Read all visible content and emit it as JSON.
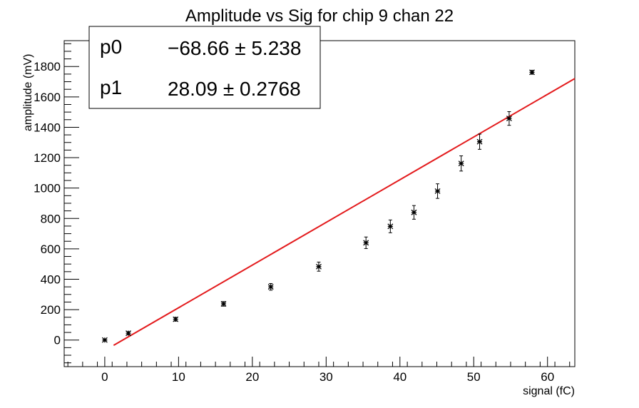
{
  "chart_data": {
    "type": "scatter",
    "title": "Amplitude vs Sig for chip 9 chan 22",
    "xlabel": "signal (fC)",
    "ylabel": "amplitude (mV)",
    "xlim": [
      -5.5,
      63.7
    ],
    "ylim": [
      -175,
      1970
    ],
    "x_ticks": [
      0,
      10,
      20,
      30,
      40,
      50,
      60
    ],
    "y_ticks": [
      0,
      200,
      400,
      600,
      800,
      1000,
      1200,
      1400,
      1600,
      1800
    ],
    "grid": false,
    "points": [
      {
        "x": 0.0,
        "y": 0,
        "err": 6
      },
      {
        "x": 3.2,
        "y": 45,
        "err": 10
      },
      {
        "x": 9.6,
        "y": 137,
        "err": 12
      },
      {
        "x": 16.1,
        "y": 238,
        "err": 15
      },
      {
        "x": 22.5,
        "y": 350,
        "err": 22
      },
      {
        "x": 29.0,
        "y": 483,
        "err": 30
      },
      {
        "x": 35.4,
        "y": 640,
        "err": 38
      },
      {
        "x": 38.7,
        "y": 748,
        "err": 42
      },
      {
        "x": 41.9,
        "y": 840,
        "err": 45
      },
      {
        "x": 45.1,
        "y": 980,
        "err": 48
      },
      {
        "x": 48.3,
        "y": 1162,
        "err": 50
      },
      {
        "x": 50.8,
        "y": 1305,
        "err": 50
      },
      {
        "x": 54.8,
        "y": 1458,
        "err": 45
      },
      {
        "x": 57.9,
        "y": 1762,
        "err": 12
      }
    ],
    "fit": {
      "function": "pol1",
      "x_range": [
        1.2,
        63.7
      ],
      "color": "#e31a1c",
      "p0": -68.66,
      "p1": 28.09
    },
    "stats_box": {
      "placement": "top-left",
      "rows": [
        {
          "name": "p0",
          "value": "−68.66 ± 5.238"
        },
        {
          "name": "p1",
          "value": "28.09 ± 0.2768"
        }
      ]
    }
  }
}
